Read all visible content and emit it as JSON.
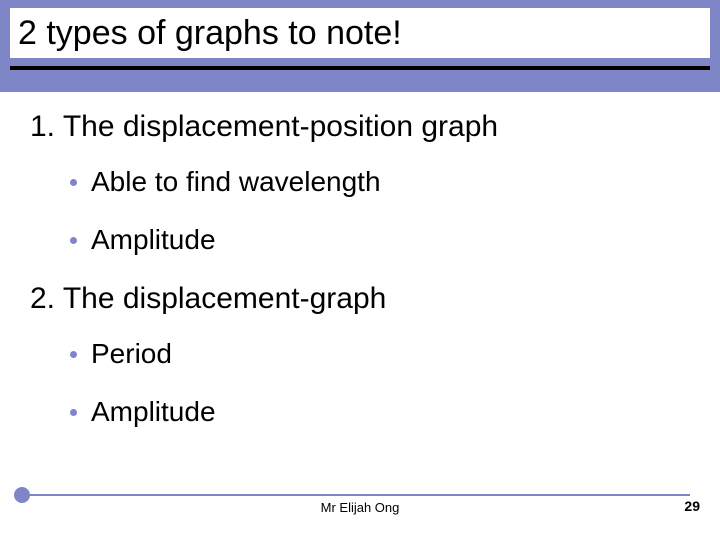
{
  "slide": {
    "title": "2 types of graphs to note!",
    "item1": {
      "heading": "1. The displacement-position graph",
      "bullets": [
        "Able to find wavelength",
        "Amplitude"
      ]
    },
    "item2": {
      "heading": "2. The displacement-graph",
      "bullets": [
        "Period",
        "Amplitude"
      ]
    },
    "footer_author": "Mr Elijah Ong",
    "page_number": "29"
  },
  "style": {
    "band_color": "#7e86c7",
    "title_fontsize": 34,
    "heading_fontsize": 30,
    "bullet_fontsize": 28,
    "bullet_color": "#7e86c7",
    "text_color": "#000000",
    "background_color": "#ffffff",
    "underline_color": "#000000",
    "footer_line_color": "#7e86c7"
  }
}
